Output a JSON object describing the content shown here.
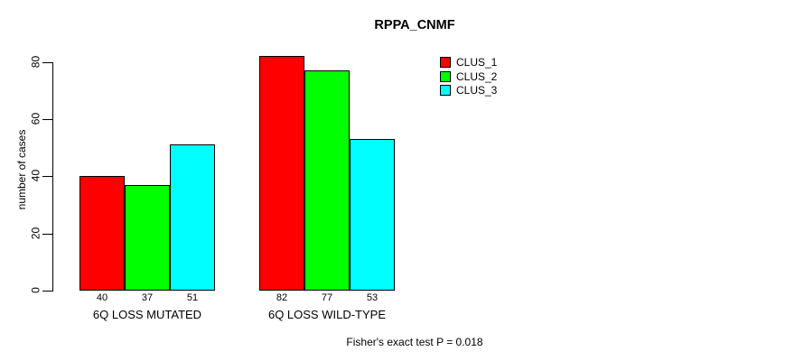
{
  "chart_data": {
    "type": "bar",
    "title": "RPPA_CNMF",
    "xlabel": "",
    "ylabel": "number of cases",
    "ylim": [
      0,
      80
    ],
    "yticks": [
      0,
      20,
      40,
      60,
      80
    ],
    "categories": [
      "6Q LOSS MUTATED",
      "6Q LOSS WILD-TYPE"
    ],
    "series": [
      {
        "name": "CLUS_1",
        "color": "#ff0000",
        "values": [
          40,
          82
        ]
      },
      {
        "name": "CLUS_2",
        "color": "#00ff00",
        "values": [
          37,
          77
        ]
      },
      {
        "name": "CLUS_3",
        "color": "#00ffff",
        "values": [
          51,
          53
        ]
      }
    ],
    "value_labels_shown": true,
    "grid": false,
    "legend_position": "top-right",
    "annotation": "Fisher's exact test P = 0.018"
  },
  "colors": {
    "background": "#ffffff",
    "axis": "#000000",
    "text": "#000000"
  }
}
